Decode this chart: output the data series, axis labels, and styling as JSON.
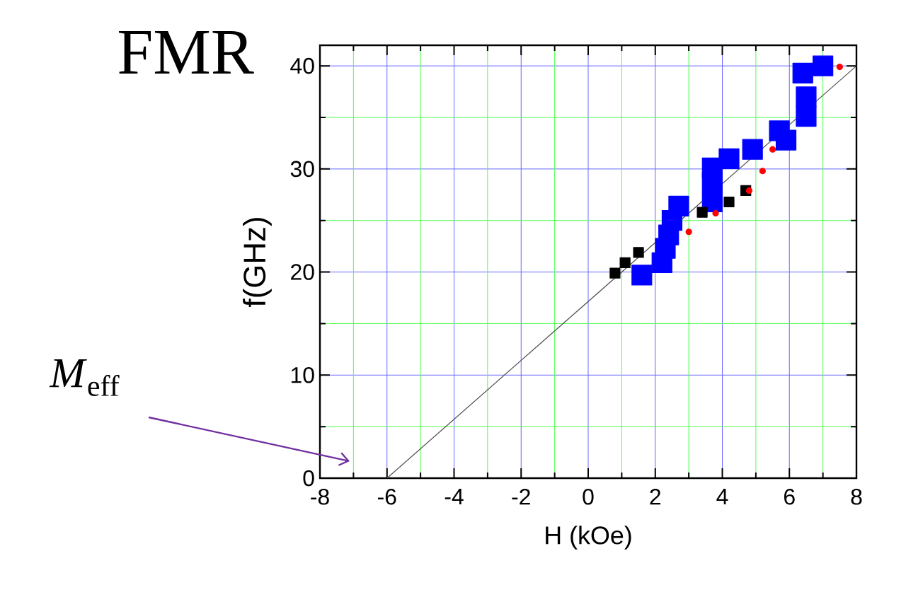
{
  "chart_data": {
    "type": "scatter",
    "title": "FMR",
    "xlabel": "H  (kOe)",
    "ylabel": "f(GHz)",
    "annotations": [
      "*M*$_{eff}$"
    ],
    "xlim": [
      -8,
      8
    ],
    "ylim": [
      0,
      42
    ],
    "xticks": [
      -8,
      {
        "value": -7,
        "label": null
      },
      -6,
      {
        "value": -5,
        "label": null
      },
      -4,
      {
        "value": -3,
        "label": null
      },
      -2,
      {
        "value": -1,
        "label": null
      },
      0,
      {
        "value": 1,
        "label": null
      },
      2,
      {
        "value": 3,
        "label": null
      },
      4,
      {
        "value": 5,
        "label": null
      },
      6,
      {
        "value": 7,
        "label": null
      },
      8
    ],
    "yticks": [
      0,
      {
        "value": 5,
        "label": null
      },
      10,
      {
        "value": 15,
        "label": null
      },
      20,
      {
        "value": 25,
        "label": null
      },
      30,
      {
        "value": 35,
        "label": null
      },
      40
    ],
    "grid": true,
    "series": [
      {
        "type": "line",
        "color": "#505050",
        "marker": "none",
        "x": [
          -6,
          8
        ],
        "values": [
          0,
          40
        ]
      },
      {
        "color": "#0000ff",
        "marker": "square",
        "x": [
          1.6,
          2.2,
          2.3,
          2.4,
          2.5,
          2.7,
          3.7,
          3.7,
          3.7,
          4.2,
          4.9,
          5.7,
          5.9,
          6.5,
          6.5,
          6.4,
          7.0
        ],
        "values": [
          19.7,
          20.9,
          22.3,
          23.6,
          25.0,
          26.4,
          26.8,
          28.7,
          30.1,
          31.0,
          31.9,
          33.7,
          32.8,
          35.1,
          37.0,
          39.3,
          40.0
        ]
      },
      {
        "color": "#000000",
        "marker": "square",
        "x": [
          0.8,
          1.1,
          1.5,
          3.4,
          4.2,
          4.7
        ],
        "values": [
          19.9,
          20.9,
          21.9,
          25.8,
          26.8,
          27.9
        ]
      },
      {
        "color": "#ff0000",
        "marker": "circle",
        "x": [
          3.0,
          3.8,
          5.2,
          5.5,
          4.8,
          7.5
        ],
        "values": [
          23.9,
          25.7,
          29.8,
          31.9,
          27.9,
          39.9
        ]
      }
    ]
  }
}
